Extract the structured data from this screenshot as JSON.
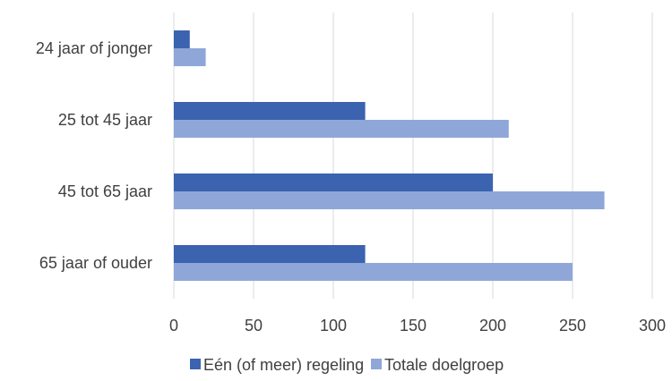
{
  "chart_data": {
    "type": "bar",
    "orientation": "horizontal",
    "categories": [
      "24 jaar of jonger",
      "25 tot 45 jaar",
      "45 tot 65 jaar",
      "65 jaar of ouder"
    ],
    "series": [
      {
        "name": "Eén (of meer) regeling",
        "values": [
          10,
          120,
          200,
          120
        ],
        "color": "#3b63b0"
      },
      {
        "name": "Totale doelgroep",
        "values": [
          20,
          210,
          270,
          250
        ],
        "color": "#8fa7d8"
      }
    ],
    "xlim": [
      0,
      300
    ],
    "xticks": [
      0,
      50,
      100,
      150,
      200,
      250,
      300
    ],
    "grid": true,
    "legend_position": "bottom"
  }
}
